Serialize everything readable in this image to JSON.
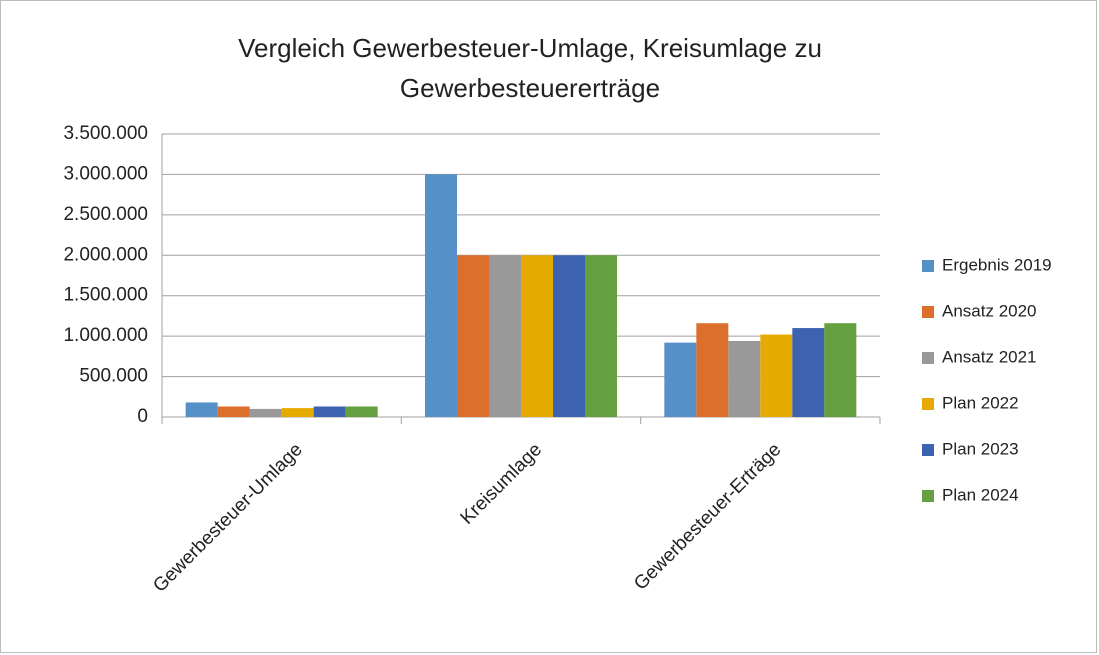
{
  "chart_data": {
    "type": "bar",
    "title": "Vergleich Gewerbesteuer-Umlage, Kreisumlage zu Gewerbesteuererträge",
    "categories": [
      "Gewerbesteuer-Umlage",
      "Kreisumlage",
      "Gewerbesteuer-Erträge"
    ],
    "series": [
      {
        "name": "Ergebnis 2019",
        "color": "#5590c8",
        "values": [
          180000,
          3000000,
          920000
        ]
      },
      {
        "name": "Ansatz 2020",
        "color": "#dc6f2b",
        "values": [
          130000,
          2000000,
          1160000
        ]
      },
      {
        "name": "Ansatz 2021",
        "color": "#999999",
        "values": [
          100000,
          2000000,
          940000
        ]
      },
      {
        "name": "Plan 2022",
        "color": "#e6ab00",
        "values": [
          110000,
          2000000,
          1020000
        ]
      },
      {
        "name": "Plan 2023",
        "color": "#3d63b0",
        "values": [
          130000,
          2000000,
          1100000
        ]
      },
      {
        "name": "Plan 2024",
        "color": "#65a040",
        "values": [
          130000,
          2000000,
          1160000
        ]
      }
    ],
    "ylim": [
      0,
      3500000
    ],
    "yticks": [
      0,
      {
        "value": 500000,
        "label": "500.000"
      },
      {
        "value": 1000000,
        "label": "1.000.000"
      },
      {
        "value": 1500000,
        "label": "1.500.000"
      },
      {
        "value": 2000000,
        "label": "2.000.000"
      },
      {
        "value": 2500000,
        "label": "2.500.000"
      },
      {
        "value": 3000000,
        "label": "3.000.000"
      },
      {
        "value": 3500000,
        "label": "3.500.000"
      }
    ],
    "grid": true,
    "legend": "right"
  }
}
